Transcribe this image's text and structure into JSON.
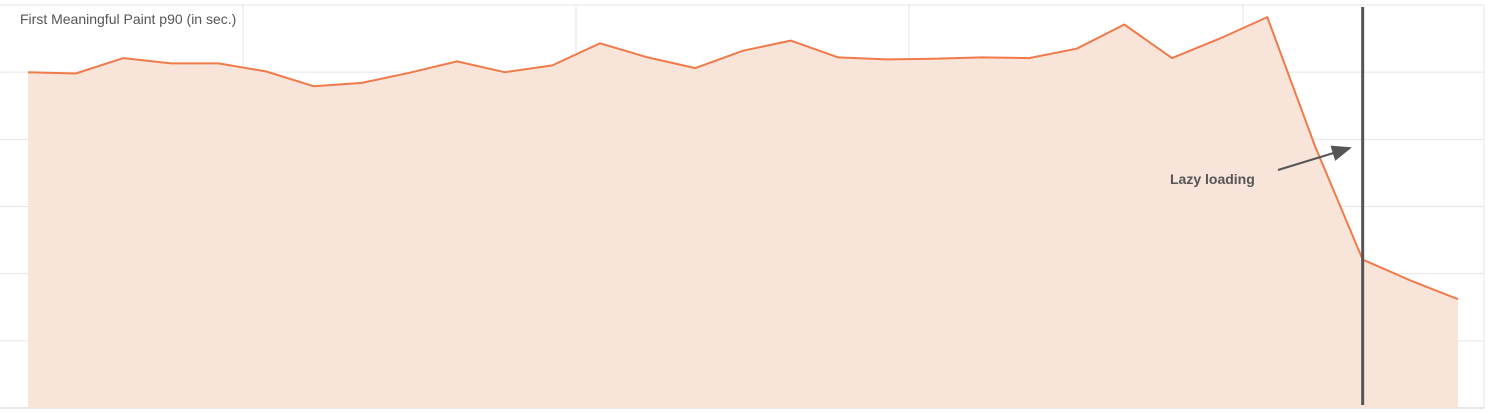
{
  "chart_data": {
    "type": "area",
    "title": "First Meaningful Paint p90 (in sec.)",
    "xlabel": "",
    "ylabel": "",
    "y_gridlines": 6,
    "x_gridlines": 4,
    "grid": true,
    "ylim": [
      0,
      6
    ],
    "x": [
      0,
      1,
      2,
      3,
      4,
      5,
      6,
      7,
      8,
      9,
      10,
      11,
      12,
      13,
      14,
      15,
      16,
      17,
      18,
      19,
      20,
      21,
      22,
      23,
      24,
      25,
      26,
      27,
      28,
      29,
      30
    ],
    "series": [
      {
        "values": [
          5.0,
          4.98,
          5.21,
          5.13,
          5.13,
          5.01,
          4.79,
          4.84,
          4.99,
          5.16,
          5.0,
          5.1,
          5.43,
          5.22,
          5.06,
          5.32,
          5.47,
          5.22,
          5.19,
          5.2,
          5.22,
          5.21,
          5.35,
          5.71,
          5.21,
          5.5,
          5.82,
          3.9,
          2.21,
          1.9,
          1.62
        ],
        "color": "#f07a4a",
        "fill": "#f9e4da"
      }
    ],
    "annotation": {
      "label": "Lazy loading",
      "x": 28,
      "marker_color": "#555555"
    }
  }
}
